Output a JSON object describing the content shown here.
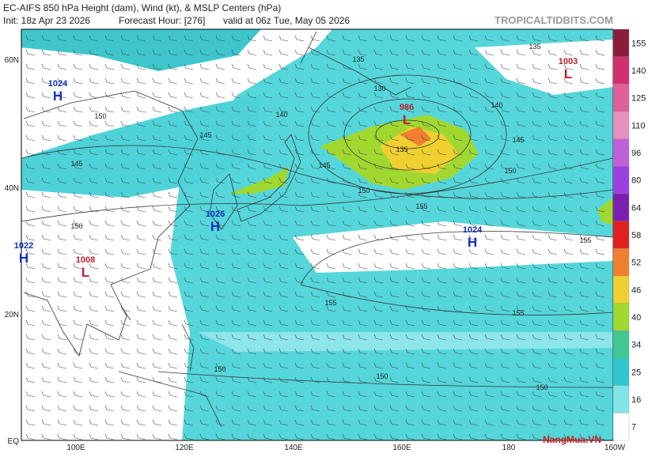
{
  "header": {
    "title": "EC-AIFS 850 hPa Height (dam), Wind (kt), & MSLP Centers (hPa)",
    "init": "Init: 18z Apr 23 2026",
    "forecast_hour": "Forecast Hour: [276]",
    "valid": "valid at 06z Tue, May 05 2026",
    "site": "TROPICALTIDBITS.COM"
  },
  "map": {
    "lat_labels": [
      "60N",
      "40N",
      "20N",
      "EQ"
    ],
    "lon_labels": [
      "100E",
      "120E",
      "140E",
      "160E",
      "180",
      "160W"
    ],
    "pressure_centers": [
      {
        "value": "1024",
        "letter": "H"
      },
      {
        "value": "1003",
        "letter": "L"
      },
      {
        "value": "986",
        "letter": "L"
      },
      {
        "value": "1026",
        "letter": "H"
      },
      {
        "value": "1024",
        "letter": "H"
      },
      {
        "value": "1022",
        "letter": "H"
      },
      {
        "value": "1008",
        "letter": "L"
      }
    ],
    "contour_labels": [
      "135",
      "135",
      "135",
      "130",
      "140",
      "140",
      "145",
      "145",
      "145",
      "150",
      "150",
      "155",
      "155",
      "155",
      "155",
      "150",
      "150",
      "150",
      "145",
      "150",
      "150"
    ]
  },
  "colorbar": {
    "ticks": [
      "155",
      "140",
      "125",
      "110",
      "96",
      "80",
      "64",
      "58",
      "52",
      "46",
      "40",
      "34",
      "25",
      "16",
      "7"
    ],
    "colors": [
      "#8a1c3c",
      "#d0306e",
      "#e0609a",
      "#e890c0",
      "#c060d8",
      "#9a40e0",
      "#7a20b0",
      "#e02020",
      "#f08030",
      "#f0d030",
      "#a0d830",
      "#40c890",
      "#30c8d0",
      "#80e4e8",
      "#ffffff"
    ]
  },
  "watermark": "NangMua.VN"
}
